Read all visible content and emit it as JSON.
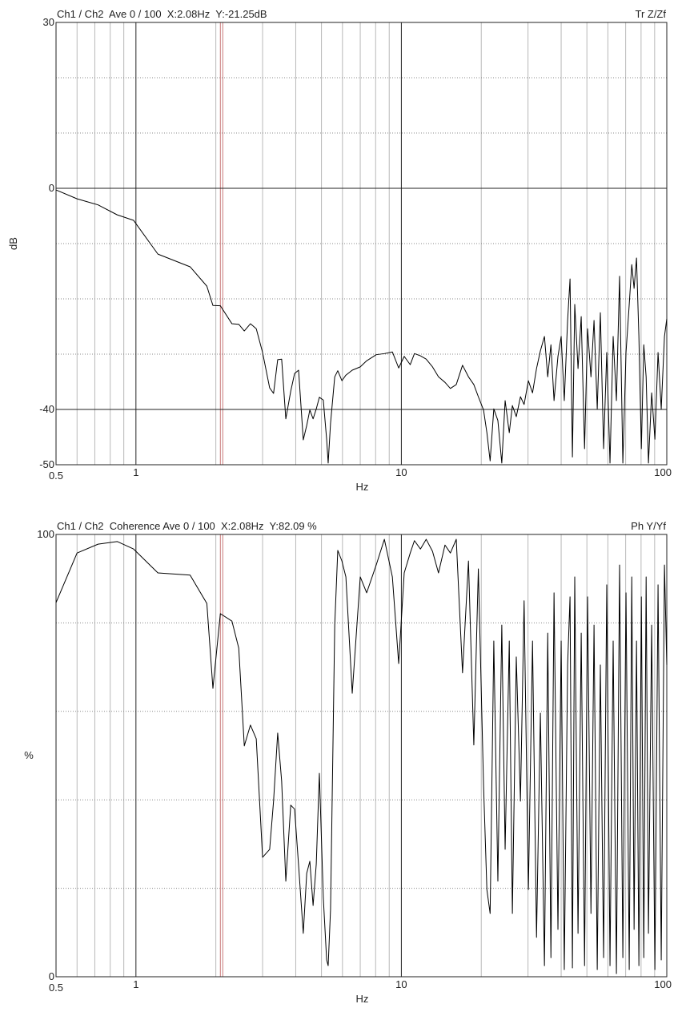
{
  "chart_data": [
    {
      "type": "line",
      "title": "Ch1 / Ch2  Ave 0 / 100  X:2.08Hz  Y:-21.25dB",
      "mode_label": "Tr Z/Zf",
      "xlabel": "Hz",
      "ylabel": "dB",
      "log_x": true,
      "xlim": [
        0.5,
        100
      ],
      "ylim": [
        -50,
        30
      ],
      "xticks": [
        0.5,
        1,
        10,
        100
      ],
      "yticks": [
        -50,
        -40,
        0,
        30
      ],
      "xgrid": [
        0.6,
        0.7,
        0.8,
        0.9,
        2,
        3,
        4,
        5,
        6,
        7,
        8,
        9,
        20,
        30,
        40,
        50,
        60,
        70,
        80,
        90
      ],
      "ygrid": [
        -30,
        -20,
        -10,
        10,
        20
      ],
      "cursor_x": 2.08,
      "cursor_color": "#c87878",
      "color": "#000000",
      "x": [
        0.5,
        0.6,
        0.72,
        0.85,
        0.98,
        1.21,
        1.6,
        1.85,
        1.95,
        2.08,
        2.3,
        2.44,
        2.56,
        2.7,
        2.84,
        3.0,
        3.19,
        3.3,
        3.42,
        3.54,
        3.67,
        3.83,
        3.96,
        4.1,
        4.27,
        4.4,
        4.52,
        4.65,
        4.78,
        4.91,
        5.08,
        5.23,
        5.3,
        5.41,
        5.61,
        5.76,
        5.97,
        6.18,
        6.53,
        7.0,
        7.4,
        8.04,
        8.63,
        9.25,
        9.77,
        10.25,
        10.8,
        11.2,
        11.8,
        12.4,
        13.1,
        13.8,
        14.6,
        15.3,
        16.1,
        17.0,
        17.9,
        18.75,
        19.5,
        20.4,
        21.0,
        21.6,
        22.3,
        23.1,
        23.9,
        24.6,
        25.5,
        26.2,
        27.1,
        28.1,
        29.0,
        30.1,
        31.2,
        32.3,
        33.4,
        34.6,
        35.6,
        36.6,
        37.6,
        38.9,
        40.0,
        41.1,
        42.3,
        43.2,
        44.1,
        45.0,
        46.3,
        47.6,
        49.0,
        50.3,
        51.8,
        53.2,
        54.7,
        56.2,
        57.8,
        59.4,
        61.1,
        62.8,
        64.6,
        66.4,
        68.3,
        70.2,
        72.2,
        73.8,
        75.3,
        76.9,
        78.5,
        80.2,
        81.9,
        83.6,
        85.3,
        87.7,
        90.2,
        92.7,
        95.3,
        98.0,
        100
      ],
      "values": [
        -0.3,
        -1.9,
        -3.0,
        -4.8,
        -5.8,
        -11.9,
        -14.2,
        -17.7,
        -21.2,
        -21.25,
        -24.5,
        -24.6,
        -25.8,
        -24.5,
        -25.4,
        -29.7,
        -36.1,
        -37.1,
        -31.0,
        -30.9,
        -41.7,
        -36.7,
        -33.5,
        -32.9,
        -45.5,
        -42.9,
        -40.1,
        -41.7,
        -39.9,
        -37.8,
        -38.3,
        -45.4,
        -49.7,
        -42.5,
        -34.1,
        -33.0,
        -34.8,
        -33.8,
        -32.9,
        -32.3,
        -31.2,
        -30.1,
        -29.9,
        -29.6,
        -32.5,
        -30.4,
        -31.9,
        -29.9,
        -30.3,
        -30.9,
        -32.3,
        -34.1,
        -35.1,
        -36.2,
        -35.5,
        -32.0,
        -34.1,
        -35.5,
        -37.7,
        -40.1,
        -44.2,
        -49.3,
        -39.9,
        -42.0,
        -49.7,
        -38.4,
        -44.2,
        -39.3,
        -41.3,
        -37.7,
        -39.1,
        -34.8,
        -37.0,
        -32.6,
        -29.4,
        -26.8,
        -34.1,
        -28.3,
        -38.4,
        -30.4,
        -26.8,
        -38.4,
        -23.9,
        -16.4,
        -48.6,
        -21.0,
        -32.6,
        -23.2,
        -47.1,
        -25.4,
        -34.1,
        -23.9,
        -39.9,
        -22.5,
        -47.1,
        -29.7,
        -49.7,
        -26.8,
        -38.4,
        -15.9,
        -49.7,
        -29.7,
        -21.0,
        -13.8,
        -18.1,
        -12.6,
        -26.8,
        -47.1,
        -28.3,
        -34.1,
        -49.7,
        -37.0,
        -45.4,
        -29.7,
        -39.9,
        -26.8,
        -23.6
      ]
    },
    {
      "type": "line",
      "title": "Ch1 / Ch2  Coherence Ave 0 / 100  X:2.08Hz  Y:82.09 %",
      "mode_label": "Ph Y/Yf",
      "xlabel": "Hz",
      "ylabel": "%",
      "log_x": true,
      "xlim": [
        0.5,
        100
      ],
      "ylim": [
        0,
        100
      ],
      "xticks": [
        0.5,
        1,
        10,
        100
      ],
      "yticks": [
        0,
        100
      ],
      "xgrid": [
        0.6,
        0.7,
        0.8,
        0.9,
        2,
        3,
        4,
        5,
        6,
        7,
        8,
        9,
        20,
        30,
        40,
        50,
        60,
        70,
        80,
        90
      ],
      "ygrid": [
        20,
        40,
        60,
        80
      ],
      "cursor_x": 2.08,
      "cursor_color": "#c87878",
      "color": "#000000",
      "x": [
        0.5,
        0.6,
        0.72,
        0.85,
        0.98,
        1.21,
        1.6,
        1.85,
        1.95,
        2.08,
        2.3,
        2.44,
        2.56,
        2.7,
        2.84,
        3.0,
        3.19,
        3.3,
        3.42,
        3.54,
        3.67,
        3.83,
        3.96,
        4.1,
        4.27,
        4.4,
        4.52,
        4.65,
        4.78,
        4.91,
        5.08,
        5.23,
        5.3,
        5.41,
        5.61,
        5.76,
        5.97,
        6.18,
        6.53,
        7.0,
        7.4,
        8.04,
        8.63,
        9.25,
        9.77,
        10.25,
        10.8,
        11.2,
        11.8,
        12.4,
        13.1,
        13.8,
        14.6,
        15.3,
        16.1,
        17.0,
        17.9,
        18.75,
        19.5,
        20.4,
        21.0,
        21.6,
        22.3,
        23.1,
        23.9,
        24.6,
        25.5,
        26.2,
        27.1,
        28.1,
        29.0,
        30.1,
        31.2,
        32.3,
        33.4,
        34.6,
        35.6,
        36.6,
        37.6,
        38.9,
        40.0,
        41.1,
        42.3,
        43.2,
        44.1,
        45.0,
        46.3,
        47.6,
        49.0,
        50.3,
        51.8,
        53.2,
        54.7,
        56.2,
        57.8,
        59.4,
        61.1,
        62.8,
        64.6,
        66.4,
        68.3,
        70.2,
        72.2,
        73.8,
        75.3,
        76.9,
        78.5,
        80.2,
        81.9,
        83.6,
        85.3,
        87.7,
        90.2,
        92.7,
        95.3,
        98.0,
        100
      ],
      "values": [
        84.6,
        95.8,
        97.8,
        98.4,
        96.7,
        91.3,
        90.8,
        84.4,
        65.2,
        82.09,
        80.4,
        74.3,
        52.2,
        56.9,
        53.8,
        27.0,
        28.8,
        39.7,
        55.1,
        44.2,
        21.6,
        38.8,
        37.9,
        25.2,
        9.8,
        23.4,
        26.1,
        16.1,
        25.5,
        46.0,
        17.9,
        3.8,
        2.5,
        15.2,
        79.5,
        96.4,
        94.0,
        90.4,
        64.1,
        90.4,
        86.8,
        93.1,
        98.9,
        90.4,
        70.8,
        91.3,
        95.8,
        98.6,
        96.7,
        98.9,
        96.2,
        91.3,
        97.6,
        95.8,
        98.9,
        68.7,
        94.0,
        52.4,
        92.2,
        43.3,
        19.7,
        14.3,
        75.9,
        21.6,
        79.5,
        28.8,
        75.9,
        14.3,
        72.3,
        39.7,
        85.0,
        19.7,
        75.9,
        8.9,
        59.6,
        2.5,
        77.7,
        4.3,
        86.8,
        10.7,
        75.9,
        1.6,
        70.5,
        85.9,
        2.0,
        90.4,
        9.8,
        77.7,
        2.5,
        85.9,
        14.3,
        79.5,
        1.6,
        70.5,
        4.3,
        88.6,
        2.5,
        75.9,
        0.7,
        93.1,
        4.3,
        86.8,
        1.6,
        90.4,
        10.7,
        75.9,
        2.5,
        85.9,
        4.3,
        90.4,
        9.8,
        79.5,
        1.6,
        88.6,
        3.8,
        93.1,
        70.5
      ]
    }
  ]
}
